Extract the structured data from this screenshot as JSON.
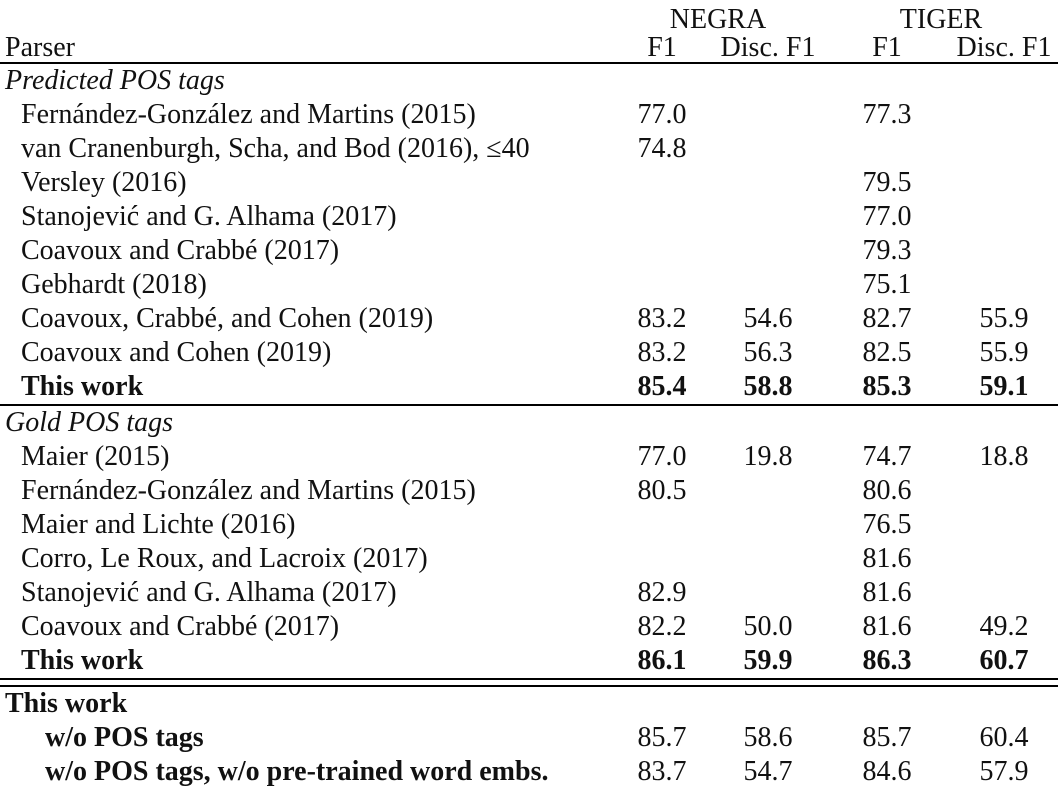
{
  "table": {
    "header": {
      "parser_label": "Parser",
      "group_headers": [
        "NEGRA",
        "TIGER"
      ],
      "sub_headers": [
        "F1",
        "Disc. F1",
        "F1",
        "Disc. F1"
      ]
    },
    "sections": [
      {
        "title": "Predicted POS tags",
        "title_style": "italic",
        "rule_after": "single",
        "rows": [
          {
            "parser": "Fernández-González and Martins (2015)",
            "values": [
              "77.0",
              "",
              "77.3",
              ""
            ],
            "bold": false,
            "bold_values": false,
            "indent": 1
          },
          {
            "parser": "van Cranenburgh, Scha, and Bod (2016), ≤40",
            "values": [
              "74.8",
              "",
              "",
              ""
            ],
            "bold": false,
            "bold_values": false,
            "indent": 1
          },
          {
            "parser": "Versley (2016)",
            "values": [
              "",
              "",
              "79.5",
              ""
            ],
            "bold": false,
            "bold_values": false,
            "indent": 1
          },
          {
            "parser": "Stanojević and G. Alhama (2017)",
            "values": [
              "",
              "",
              "77.0",
              ""
            ],
            "bold": false,
            "bold_values": false,
            "indent": 1
          },
          {
            "parser": "Coavoux and Crabbé (2017)",
            "values": [
              "",
              "",
              "79.3",
              ""
            ],
            "bold": false,
            "bold_values": false,
            "indent": 1
          },
          {
            "parser": "Gebhardt (2018)",
            "values": [
              "",
              "",
              "75.1",
              ""
            ],
            "bold": false,
            "bold_values": false,
            "indent": 1
          },
          {
            "parser": "Coavoux, Crabbé, and Cohen (2019)",
            "values": [
              "83.2",
              "54.6",
              "82.7",
              "55.9"
            ],
            "bold": false,
            "bold_values": false,
            "indent": 1
          },
          {
            "parser": "Coavoux and Cohen (2019)",
            "values": [
              "83.2",
              "56.3",
              "82.5",
              "55.9"
            ],
            "bold": false,
            "bold_values": false,
            "indent": 1
          },
          {
            "parser": "This work",
            "values": [
              "85.4",
              "58.8",
              "85.3",
              "59.1"
            ],
            "bold": true,
            "bold_values": true,
            "indent": 1
          }
        ]
      },
      {
        "title": "Gold POS tags",
        "title_style": "italic",
        "rule_after": "double",
        "rows": [
          {
            "parser": "Maier (2015)",
            "values": [
              "77.0",
              "19.8",
              "74.7",
              "18.8"
            ],
            "bold": false,
            "bold_values": false,
            "indent": 1
          },
          {
            "parser": "Fernández-González and Martins (2015)",
            "values": [
              "80.5",
              "",
              "80.6",
              ""
            ],
            "bold": false,
            "bold_values": false,
            "indent": 1
          },
          {
            "parser": "Maier and Lichte (2016)",
            "values": [
              "",
              "",
              "76.5",
              ""
            ],
            "bold": false,
            "bold_values": false,
            "indent": 1
          },
          {
            "parser": "Corro, Le Roux, and Lacroix (2017)",
            "values": [
              "",
              "",
              "81.6",
              ""
            ],
            "bold": false,
            "bold_values": false,
            "indent": 1
          },
          {
            "parser": "Stanojević and G. Alhama (2017)",
            "values": [
              "82.9",
              "",
              "81.6",
              ""
            ],
            "bold": false,
            "bold_values": false,
            "indent": 1
          },
          {
            "parser": "Coavoux and Crabbé (2017)",
            "values": [
              "82.2",
              "50.0",
              "81.6",
              "49.2"
            ],
            "bold": false,
            "bold_values": false,
            "indent": 1
          },
          {
            "parser": "This work",
            "values": [
              "86.1",
              "59.9",
              "86.3",
              "60.7"
            ],
            "bold": true,
            "bold_values": true,
            "indent": 1
          }
        ]
      },
      {
        "title": "This work",
        "title_style": "bold",
        "rule_after": "single",
        "rows": [
          {
            "parser": "w/o POS tags",
            "values": [
              "85.7",
              "58.6",
              "85.7",
              "60.4"
            ],
            "bold": true,
            "bold_values": false,
            "indent": 2
          },
          {
            "parser": "w/o POS tags, w/o pre-trained word embs.",
            "values": [
              "83.7",
              "54.7",
              "84.6",
              "57.9"
            ],
            "bold": true,
            "bold_values": false,
            "indent": 2
          }
        ]
      }
    ]
  }
}
